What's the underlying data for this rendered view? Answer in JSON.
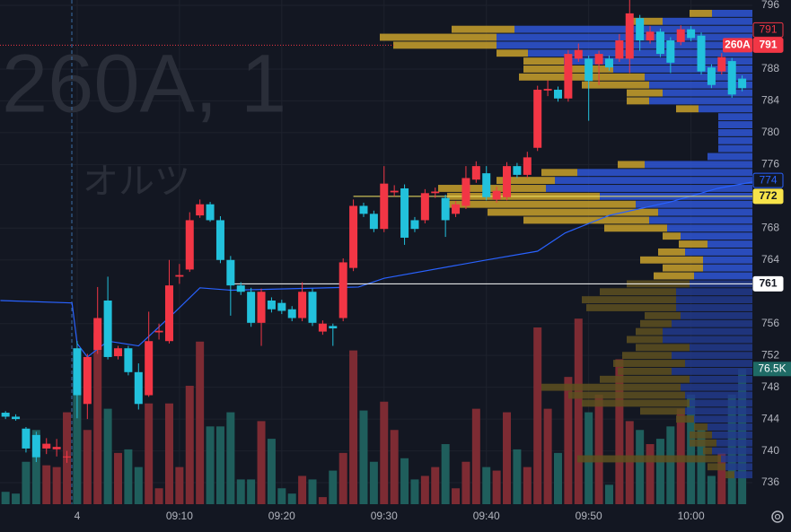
{
  "chart_data": {
    "type": "candlestick",
    "symbol_watermark": "260A, 1",
    "name_watermark": "オルツ",
    "xlim": [
      -7.54,
      66
    ],
    "ylim": [
      733.3,
      796.68
    ],
    "xticks": [
      {
        "value": 0,
        "label": "4"
      },
      {
        "value": 10,
        "label": "09:10"
      },
      {
        "value": 20,
        "label": "09:20"
      },
      {
        "value": 30,
        "label": "09:30"
      },
      {
        "value": 40,
        "label": "09:40"
      },
      {
        "value": 50,
        "label": "09:50"
      },
      {
        "value": 60,
        "label": "10:00"
      }
    ],
    "yticks": [
      736,
      740,
      744,
      748,
      752,
      756,
      764,
      768,
      776,
      780,
      784,
      788,
      796
    ],
    "grid": true,
    "up_color": "#f23645",
    "down_color": "#22c1dc",
    "vol_up_color": "#7d2b33",
    "vol_down_color": "#1f5e5c",
    "x": [
      -7,
      -6,
      -5,
      -4,
      -3,
      -2,
      -1,
      0,
      1,
      2,
      3,
      4,
      5,
      6,
      7,
      8,
      9,
      10,
      11,
      12,
      13,
      14,
      15,
      16,
      17,
      18,
      19,
      20,
      21,
      22,
      23,
      24,
      25,
      26,
      27,
      28,
      29,
      30,
      31,
      32,
      33,
      34,
      35,
      36,
      37,
      38,
      39,
      40,
      41,
      42,
      43,
      44,
      45,
      46,
      47,
      48,
      49,
      50,
      51,
      52,
      53,
      54,
      55,
      56,
      57,
      58,
      59,
      60,
      61,
      62,
      63,
      64,
      65
    ],
    "open": [
      744.8,
      744.3,
      742.8,
      742,
      740.3,
      740.2,
      739.2,
      752.9,
      745.9,
      752.7,
      758.9,
      751.9,
      752.9,
      749.9,
      747,
      754.9,
      753.8,
      761.9,
      762.8,
      769.6,
      771,
      769,
      764,
      760.8,
      760,
      756.1,
      758.9,
      758.6,
      757.8,
      756.7,
      760,
      755,
      755.7,
      756.7,
      763,
      770.8,
      769.8,
      767.9,
      772.5,
      773,
      769,
      769,
      772.4,
      771.8,
      769.8,
      770.8,
      774.1,
      774.9,
      771.6,
      771.9,
      775.8,
      774.7,
      778.1,
      785.3,
      785.4,
      784.3,
      789.3,
      789.3,
      788.6,
      789.3,
      789.3,
      789.3,
      794.4,
      791.6,
      792.7,
      791.6,
      791.4,
      793,
      792.2,
      788.2,
      787.7,
      789,
      786.8
    ],
    "close": [
      744.3,
      744,
      740.3,
      739.2,
      740.9,
      740.5,
      739.3,
      747,
      751.8,
      756.7,
      751.8,
      752.9,
      749.9,
      745.9,
      753.8,
      755.1,
      760.8,
      762.1,
      769,
      771,
      769,
      764,
      760.8,
      760,
      756.1,
      760,
      757.8,
      757.6,
      756.7,
      760,
      756.1,
      756,
      755.4,
      763.7,
      770.8,
      769.8,
      767.9,
      773.6,
      772.7,
      766.8,
      767.9,
      772.4,
      772.6,
      769,
      771,
      774.3,
      775.8,
      771.9,
      772.7,
      775.8,
      774.7,
      776.9,
      785.4,
      785.5,
      784.3,
      789.9,
      790.4,
      786.5,
      789.9,
      788.2,
      791.6,
      795,
      791.6,
      792.7,
      789.9,
      788.8,
      793,
      791.9,
      787.7,
      786,
      789.5,
      784.8,
      785.6
    ],
    "high": [
      745,
      744.6,
      743,
      742.4,
      741.6,
      741.5,
      740,
      753.8,
      752.2,
      760.6,
      761.9,
      753.2,
      753.2,
      751,
      757.5,
      756,
      764,
      763.5,
      770,
      771.6,
      771.3,
      769.5,
      764.5,
      761.2,
      760.5,
      760.4,
      759.3,
      759,
      758.2,
      761.2,
      760.4,
      756.4,
      756,
      764.2,
      771.6,
      771.2,
      770.2,
      775.8,
      773.4,
      773.5,
      769.4,
      772.9,
      773.1,
      772.2,
      771.4,
      775.8,
      776.4,
      775.8,
      773.2,
      776.3,
      776.2,
      777.6,
      785.9,
      786.6,
      785.8,
      790.4,
      791.2,
      789.7,
      790.3,
      789.7,
      792.4,
      796.7,
      794.8,
      793.4,
      793.1,
      792,
      793.5,
      793.4,
      792.6,
      788.6,
      790,
      789.4,
      787.2
    ],
    "low": [
      744,
      743.8,
      739.8,
      738.6,
      739.6,
      739.3,
      738.5,
      744.1,
      744,
      752.2,
      751.5,
      751.5,
      749.5,
      745.2,
      746.8,
      754,
      753.5,
      761,
      762.5,
      769.3,
      768.8,
      763.6,
      757,
      759.6,
      755.6,
      753.2,
      757.4,
      757.2,
      756.3,
      756.3,
      755.7,
      754.6,
      753.2,
      756.3,
      762.6,
      769.4,
      767.5,
      767.5,
      772,
      765.9,
      767.5,
      768.6,
      771.8,
      766.9,
      769.4,
      770.4,
      773.7,
      771.5,
      771.2,
      771.5,
      774.3,
      774.3,
      777.7,
      784.6,
      783.9,
      783.9,
      788.9,
      781.5,
      786,
      787.8,
      788.9,
      787.5,
      790.3,
      791.2,
      789.5,
      787.5,
      791,
      791.5,
      787.3,
      785.6,
      787.3,
      784.4,
      785.2
    ],
    "volume": {
      "values": [
        7,
        6,
        24,
        42,
        22,
        21,
        52,
        75,
        42,
        97,
        54,
        29,
        31,
        21,
        57,
        9,
        57,
        21,
        67,
        92,
        44,
        44,
        52,
        14,
        14,
        47,
        37,
        9,
        6,
        16,
        14,
        4,
        19,
        29,
        87,
        53,
        24,
        58,
        42,
        26,
        14,
        16,
        21,
        34,
        9,
        24,
        54,
        21,
        19,
        52,
        31,
        21,
        100,
        54,
        29,
        72,
        105,
        52,
        62,
        11,
        82,
        47,
        42,
        34,
        37,
        44,
        54,
        62,
        42,
        16,
        29,
        62,
        76.5
      ],
      "last_label": "76.5K",
      "label_color": "#1f6b66"
    },
    "vwap": {
      "x": [
        -7.5,
        -0.5,
        0,
        1,
        3,
        6,
        9.6,
        12,
        15,
        27.5,
        30,
        40,
        45,
        47.7,
        52,
        58,
        62.6,
        66
      ],
      "values": [
        758.9,
        758.6,
        753.5,
        751.8,
        753.8,
        753.2,
        757.5,
        760.5,
        760.2,
        760.6,
        761.7,
        764,
        765.1,
        767.4,
        769.6,
        771.3,
        773,
        773.8
      ],
      "color": "#2962ff"
    },
    "profile": {
      "prices": [
        795,
        794,
        793,
        792,
        791,
        790,
        789,
        788,
        787,
        786,
        785,
        784,
        783,
        782,
        781,
        780,
        779,
        778,
        777,
        776,
        775,
        774,
        773,
        772,
        771,
        770,
        769,
        768,
        767,
        766,
        765,
        764,
        763,
        762,
        761,
        760,
        759,
        758,
        757,
        756,
        755,
        754,
        753,
        752,
        751,
        750,
        749,
        748,
        747,
        746,
        745,
        744,
        743,
        742,
        741,
        740,
        739,
        738,
        737
      ],
      "up": [
        45,
        100,
        265,
        285,
        285,
        250,
        210,
        155,
        120,
        115,
        100,
        115,
        60,
        38,
        38,
        38,
        38,
        38,
        50,
        120,
        195,
        220,
        230,
        170,
        130,
        105,
        115,
        95,
        80,
        50,
        75,
        55,
        55,
        65,
        70,
        85,
        85,
        85,
        80,
        90,
        100,
        100,
        70,
        90,
        75,
        90,
        70,
        80,
        75,
        70,
        75,
        65,
        50,
        45,
        40,
        45,
        35,
        30,
        20
      ],
      "down": [
        25,
        40,
        70,
        130,
        115,
        35,
        45,
        100,
        140,
        75,
        40,
        25,
        25,
        0,
        0,
        0,
        0,
        0,
        0,
        30,
        40,
        65,
        120,
        170,
        210,
        190,
        140,
        70,
        20,
        32,
        30,
        70,
        45,
        45,
        70,
        85,
        105,
        100,
        40,
        35,
        30,
        40,
        60,
        55,
        80,
        60,
        100,
        155,
        130,
        120,
        50,
        20,
        15,
        25,
        30,
        10,
        160,
        20,
        10
      ],
      "value_area": [
        762,
        796
      ],
      "colors": [
        "#2f56d6",
        "#c9a12b"
      ],
      "outside_colors": [
        "#223a8c",
        "#5e5020"
      ]
    },
    "lines": [
      {
        "value": 791,
        "from": -7.54,
        "to": 31,
        "color": "#f23645",
        "dashed": true
      },
      {
        "value": 772,
        "from": 27,
        "to": 66,
        "color": "#f5e663",
        "dashed": false
      },
      {
        "value": 761,
        "from": 15,
        "to": 66,
        "color": "#ffffff",
        "dashed": false
      }
    ],
    "price_labels": [
      {
        "value": 791,
        "label": "791",
        "style": "outline",
        "color": "#f23645",
        "stack": 1
      },
      {
        "value": 791,
        "label": "791",
        "style": "solid",
        "color": "#f23645",
        "tag": "260A",
        "stack": 0
      },
      {
        "value": 774,
        "label": "774",
        "style": "outline",
        "color": "#2962ff",
        "stack": 0
      },
      {
        "value": 772,
        "label": "772",
        "style": "solid",
        "color": "#f7e34a",
        "stack": 0
      },
      {
        "value": 761,
        "label": "761",
        "style": "solid",
        "color": "#ffffff",
        "stack": 0
      }
    ]
  }
}
